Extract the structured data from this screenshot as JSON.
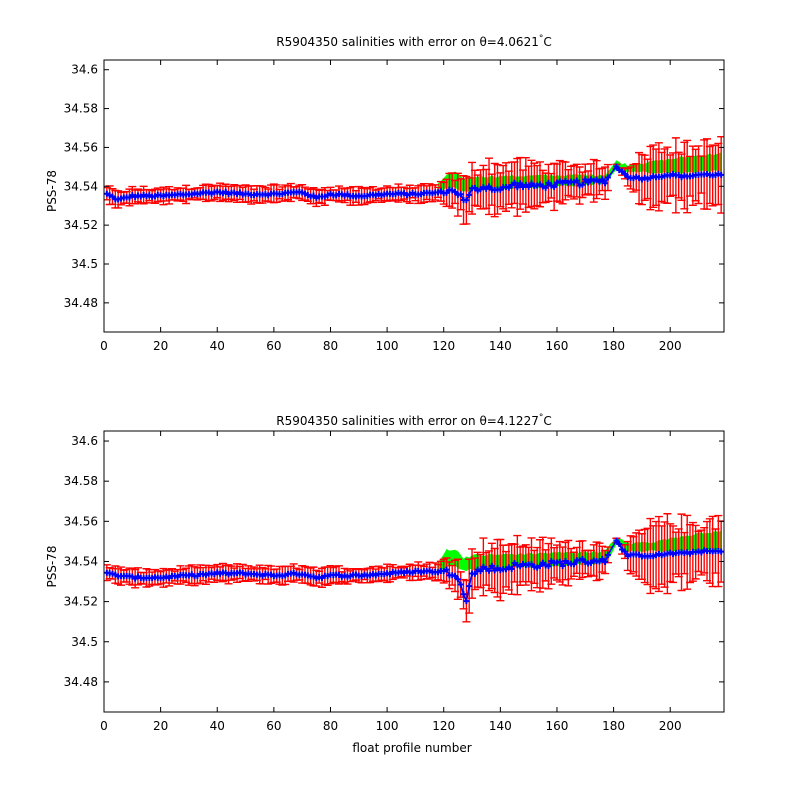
{
  "chart_data": [
    {
      "type": "line",
      "title_main": "R5904350 salinities with error on θ=4.0621",
      "title_sup": "°",
      "title_unit": "C",
      "xlabel": "",
      "ylabel": "PSS-78",
      "xlim": [
        0,
        219
      ],
      "ylim": [
        34.465,
        34.605
      ],
      "xticks": [
        "0",
        "20",
        "40",
        "60",
        "80",
        "100",
        "120",
        "140",
        "160",
        "180",
        "200"
      ],
      "yticks": [
        "34.48",
        "34.5",
        "34.52",
        "34.54",
        "34.56",
        "34.58",
        "34.6"
      ],
      "colors": {
        "error_bar": "#ff0000",
        "band": "#00ff00",
        "series": "#0000ff"
      },
      "series_knots": [
        [
          1,
          34.536
        ],
        [
          5,
          34.533
        ],
        [
          10,
          34.535
        ],
        [
          20,
          34.535
        ],
        [
          30,
          34.536
        ],
        [
          40,
          34.537
        ],
        [
          50,
          34.536
        ],
        [
          60,
          34.536
        ],
        [
          70,
          34.537
        ],
        [
          75,
          34.534
        ],
        [
          80,
          34.536
        ],
        [
          90,
          34.535
        ],
        [
          100,
          34.536
        ],
        [
          110,
          34.536
        ],
        [
          120,
          34.537
        ],
        [
          124,
          34.538
        ],
        [
          126,
          34.535
        ],
        [
          128,
          34.532
        ],
        [
          130,
          34.538
        ],
        [
          135,
          34.54
        ],
        [
          140,
          34.538
        ],
        [
          145,
          34.541
        ],
        [
          150,
          34.54
        ],
        [
          160,
          34.541
        ],
        [
          170,
          34.542
        ],
        [
          177,
          34.543
        ],
        [
          181,
          34.55
        ],
        [
          185,
          34.545
        ],
        [
          190,
          34.544
        ],
        [
          195,
          34.545
        ],
        [
          200,
          34.546
        ],
        [
          205,
          34.545
        ],
        [
          210,
          34.546
        ],
        [
          218,
          34.546
        ]
      ],
      "band_knots": [
        [
          118,
          34.537,
          34.541
        ],
        [
          121,
          34.539,
          34.546
        ],
        [
          124,
          34.54,
          34.547
        ],
        [
          127,
          34.537,
          34.544
        ],
        [
          130,
          34.538,
          34.545
        ],
        [
          177,
          34.541,
          34.546
        ],
        [
          181,
          34.549,
          34.553
        ],
        [
          185,
          34.547,
          34.551
        ],
        [
          195,
          34.547,
          34.553
        ],
        [
          205,
          34.547,
          34.555
        ],
        [
          218,
          34.548,
          34.557
        ]
      ],
      "error_profile": [
        [
          0,
          0.004
        ],
        [
          118,
          0.004
        ],
        [
          128,
          0.012
        ],
        [
          140,
          0.013
        ],
        [
          150,
          0.012
        ],
        [
          160,
          0.01
        ],
        [
          176,
          0.009
        ],
        [
          182,
          0.0
        ],
        [
          186,
          0.008
        ],
        [
          193,
          0.016
        ],
        [
          200,
          0.017
        ],
        [
          210,
          0.015
        ],
        [
          218,
          0.018
        ]
      ],
      "gap_start": 179,
      "gap_end": 180
    },
    {
      "type": "line",
      "title_main": "R5904350 salinities with error on θ=4.1227",
      "title_sup": "°",
      "title_unit": "C",
      "xlabel": "float profile number",
      "ylabel": "PSS-78",
      "xlim": [
        0,
        219
      ],
      "ylim": [
        34.465,
        34.605
      ],
      "xticks": [
        "0",
        "20",
        "40",
        "60",
        "80",
        "100",
        "120",
        "140",
        "160",
        "180",
        "200"
      ],
      "yticks": [
        "34.48",
        "34.5",
        "34.52",
        "34.54",
        "34.56",
        "34.58",
        "34.6"
      ],
      "colors": {
        "error_bar": "#ff0000",
        "band": "#00ff00",
        "series": "#0000ff"
      },
      "series_knots": [
        [
          1,
          34.534
        ],
        [
          5,
          34.533
        ],
        [
          10,
          34.532
        ],
        [
          20,
          34.532
        ],
        [
          30,
          34.533
        ],
        [
          40,
          34.534
        ],
        [
          50,
          34.534
        ],
        [
          60,
          34.533
        ],
        [
          70,
          34.534
        ],
        [
          75,
          34.532
        ],
        [
          80,
          34.533
        ],
        [
          90,
          34.533
        ],
        [
          100,
          34.534
        ],
        [
          110,
          34.535
        ],
        [
          120,
          34.535
        ],
        [
          124,
          34.534
        ],
        [
          126,
          34.53
        ],
        [
          128,
          34.52
        ],
        [
          130,
          34.534
        ],
        [
          135,
          34.537
        ],
        [
          140,
          34.536
        ],
        [
          145,
          34.538
        ],
        [
          150,
          34.538
        ],
        [
          160,
          34.539
        ],
        [
          170,
          34.54
        ],
        [
          177,
          34.541
        ],
        [
          181,
          34.55
        ],
        [
          185,
          34.543
        ],
        [
          190,
          34.543
        ],
        [
          195,
          34.543
        ],
        [
          200,
          34.544
        ],
        [
          205,
          34.544
        ],
        [
          210,
          34.545
        ],
        [
          218,
          34.545
        ]
      ],
      "band_knots": [
        [
          118,
          34.535,
          34.539
        ],
        [
          121,
          34.537,
          34.546
        ],
        [
          124,
          34.538,
          34.546
        ],
        [
          127,
          34.535,
          34.542
        ],
        [
          130,
          34.536,
          34.543
        ],
        [
          177,
          34.539,
          34.545
        ],
        [
          181,
          34.548,
          34.552
        ],
        [
          185,
          34.545,
          34.549
        ],
        [
          195,
          34.545,
          34.55
        ],
        [
          205,
          34.545,
          34.553
        ],
        [
          218,
          34.546,
          34.555
        ]
      ],
      "error_profile": [
        [
          0,
          0.004
        ],
        [
          118,
          0.004
        ],
        [
          128,
          0.012
        ],
        [
          140,
          0.013
        ],
        [
          150,
          0.012
        ],
        [
          160,
          0.01
        ],
        [
          176,
          0.009
        ],
        [
          182,
          0.0
        ],
        [
          186,
          0.008
        ],
        [
          193,
          0.016
        ],
        [
          200,
          0.017
        ],
        [
          210,
          0.015
        ],
        [
          218,
          0.018
        ]
      ],
      "gap_start": 179,
      "gap_end": 180
    }
  ]
}
